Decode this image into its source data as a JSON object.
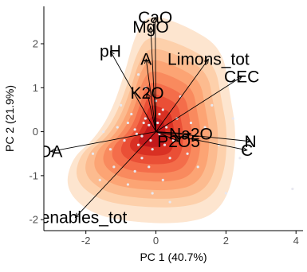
{
  "chart_data": {
    "type": "scatter",
    "xlabel": "PC 1 (40.7%)",
    "ylabel": "PC 2 (21.9%)",
    "xlim": [
      -3.2,
      4.2
    ],
    "ylim": [
      -2.25,
      2.85
    ],
    "x_ticks": [
      -2,
      0,
      2,
      4
    ],
    "y_ticks": [
      -2,
      -1,
      0,
      1,
      2
    ],
    "density_colors": [
      "#fde5cf",
      "#fdd0ab",
      "#fcbb8f",
      "#fca474",
      "#f98a5e",
      "#f46d4a",
      "#ea4f36",
      "#d93023",
      "#c2181b"
    ],
    "point_color": "#e8e8f0",
    "loadings": [
      {
        "label": "CaO",
        "x": -0.02,
        "y": 2.6
      },
      {
        "label": "MgO",
        "x": -0.15,
        "y": 2.38
      },
      {
        "label": "pH",
        "x": -1.3,
        "y": 1.83
      },
      {
        "label": "A",
        "x": -0.28,
        "y": 1.65
      },
      {
        "label": "Limons_tot",
        "x": 1.5,
        "y": 1.65
      },
      {
        "label": "CEC",
        "x": 2.45,
        "y": 1.25
      },
      {
        "label": "K2O",
        "x": -0.25,
        "y": 0.88
      },
      {
        "label": "Na2O",
        "x": 1.0,
        "y": -0.05
      },
      {
        "label": "P2O5",
        "x": 0.65,
        "y": -0.22
      },
      {
        "label": "N",
        "x": 2.7,
        "y": -0.22
      },
      {
        "label": "C",
        "x": 2.6,
        "y": -0.42
      },
      {
        "label": "DA",
        "x": -3.0,
        "y": -0.45
      },
      {
        "label": "Arenables_tot",
        "x": -2.3,
        "y": -1.95
      }
    ],
    "points": [
      [
        -0.6,
        0.05
      ],
      [
        -0.4,
        -0.1
      ],
      [
        -0.8,
        0.2
      ],
      [
        -0.2,
        0.15
      ],
      [
        0.1,
        -0.05
      ],
      [
        -0.5,
        -0.3
      ],
      [
        -0.3,
        0.3
      ],
      [
        0.3,
        0.1
      ],
      [
        -0.9,
        -0.2
      ],
      [
        -0.1,
        -0.4
      ],
      [
        0.5,
        -0.2
      ],
      [
        -0.7,
        0.4
      ],
      [
        0.2,
        0.5
      ],
      [
        -1.1,
        0.1
      ],
      [
        -0.4,
        -0.6
      ],
      [
        0.6,
        0.3
      ],
      [
        -0.2,
        -0.8
      ],
      [
        0.8,
        -0.1
      ],
      [
        -1.3,
        -0.4
      ],
      [
        0.0,
        0.7
      ],
      [
        -0.6,
        -0.9
      ],
      [
        1.0,
        0.2
      ],
      [
        -1.0,
        0.6
      ],
      [
        0.4,
        -0.6
      ],
      [
        -0.3,
        1.0
      ],
      [
        0.9,
        -0.5
      ],
      [
        -1.5,
        0.0
      ],
      [
        1.4,
        0.1
      ],
      [
        -0.8,
        -1.2
      ],
      [
        0.2,
        -1.1
      ],
      [
        1.8,
        -0.3
      ],
      [
        -1.2,
        -0.8
      ],
      [
        0.7,
        0.8
      ],
      [
        -0.1,
        -1.4
      ],
      [
        1.2,
        -0.8
      ],
      [
        -1.6,
        -1.1
      ],
      [
        2.2,
        0.3
      ],
      [
        -0.5,
        1.3
      ],
      [
        1.6,
        0.6
      ],
      [
        0.4,
        -1.6
      ],
      [
        2.4,
        -0.6
      ],
      [
        -1.8,
        -0.5
      ],
      [
        0.1,
        0.4
      ],
      [
        -0.35,
        0.2
      ],
      [
        -0.15,
        -0.2
      ],
      [
        0.25,
        -0.3
      ],
      [
        -0.55,
        -0.05
      ],
      [
        0.05,
        0.2
      ],
      [
        3.9,
        -1.3
      ],
      [
        2.0,
        -1.4
      ]
    ]
  }
}
